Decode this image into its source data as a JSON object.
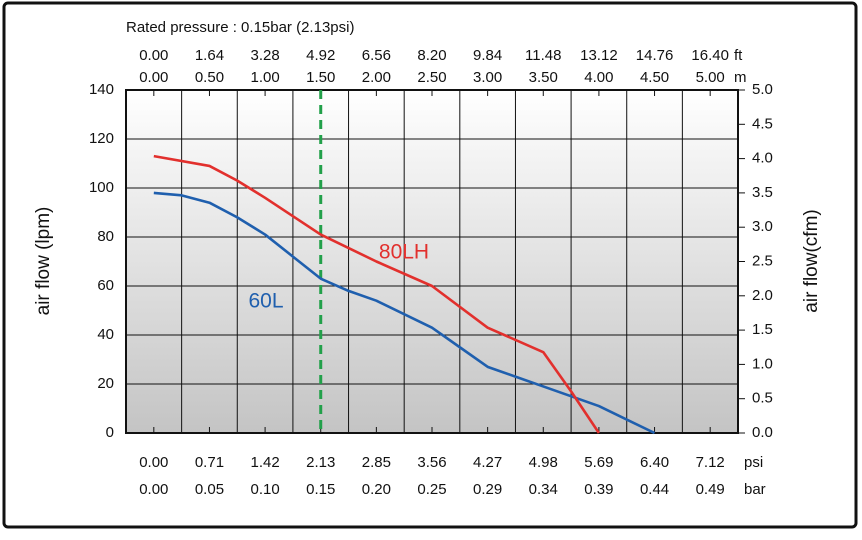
{
  "chart_data": {
    "type": "line",
    "title": "Rated pressure : 0.15bar (2.13psi)",
    "y_label": "air flow (lpm)",
    "y2_label": "air flow(cfm)",
    "xlim": [
      -0.25,
      5.25
    ],
    "xticks": [
      {
        "value": 0,
        "label": "0.00"
      },
      {
        "value": 0.5,
        "label": "0.50"
      },
      {
        "value": 1,
        "label": "1.00"
      },
      {
        "value": 1.5,
        "label": "1.50"
      },
      {
        "value": 2,
        "label": "2.00"
      },
      {
        "value": 2.5,
        "label": "2.50"
      },
      {
        "value": 3,
        "label": "3.00"
      },
      {
        "value": 3.5,
        "label": "3.50"
      },
      {
        "value": 4,
        "label": "4.00"
      },
      {
        "value": 4.5,
        "label": "4.50"
      },
      {
        "value": 5,
        "label": "5.00"
      }
    ],
    "x_unit": "m",
    "ft_labels": [
      "0.00",
      "1.64",
      "3.28",
      "4.92",
      "6.56",
      "8.20",
      "9.84",
      "11.48",
      "13.12",
      "14.76",
      "16.40"
    ],
    "ft_unit": "ft",
    "psi_labels": [
      "0.00",
      "0.71",
      "1.42",
      "2.13",
      "2.85",
      "3.56",
      "4.27",
      "4.98",
      "5.69",
      "6.40",
      "7.12"
    ],
    "psi_unit": "psi",
    "bar_labels": [
      "0.00",
      "0.05",
      "0.10",
      "0.15",
      "0.20",
      "0.25",
      "0.29",
      "0.34",
      "0.39",
      "0.44",
      "0.49"
    ],
    "bar_unit": "bar",
    "ylim": [
      0,
      140
    ],
    "yticks": [
      0,
      20,
      40,
      60,
      80,
      100,
      120,
      140
    ],
    "y2lim": [
      0,
      5
    ],
    "y2ticks": [
      {
        "value": 0,
        "label": "0.0"
      },
      {
        "value": 0.5,
        "label": "0.5"
      },
      {
        "value": 1,
        "label": "1.0"
      },
      {
        "value": 1.5,
        "label": "1.5"
      },
      {
        "value": 2,
        "label": "2.0"
      },
      {
        "value": 2.5,
        "label": "2.5"
      },
      {
        "value": 3,
        "label": "3.0"
      },
      {
        "value": 3.5,
        "label": "3.5"
      },
      {
        "value": 4,
        "label": "4.0"
      },
      {
        "value": 4.5,
        "label": "4.5"
      },
      {
        "value": 5,
        "label": "5.0"
      }
    ],
    "grid": true,
    "reference_x": 1.5,
    "reference_color": "#22a04a",
    "series": [
      {
        "name": "60L",
        "color": "#1f5fae",
        "x": [
          0,
          0.25,
          0.5,
          0.75,
          1,
          1.25,
          1.5,
          1.75,
          2,
          2.5,
          2.75,
          3,
          3.5,
          4,
          4.5
        ],
        "values": [
          98,
          97,
          94,
          88,
          81,
          72,
          63,
          58,
          54,
          43,
          35,
          27,
          19,
          11,
          0
        ]
      },
      {
        "name": "80LH",
        "color": "#e2302d",
        "x": [
          0,
          0.5,
          0.75,
          1,
          1.5,
          2,
          2.5,
          3,
          3.5,
          3.75,
          4
        ],
        "values": [
          113,
          109,
          103,
          96,
          81,
          70,
          60,
          43,
          33,
          17,
          0
        ]
      }
    ]
  }
}
